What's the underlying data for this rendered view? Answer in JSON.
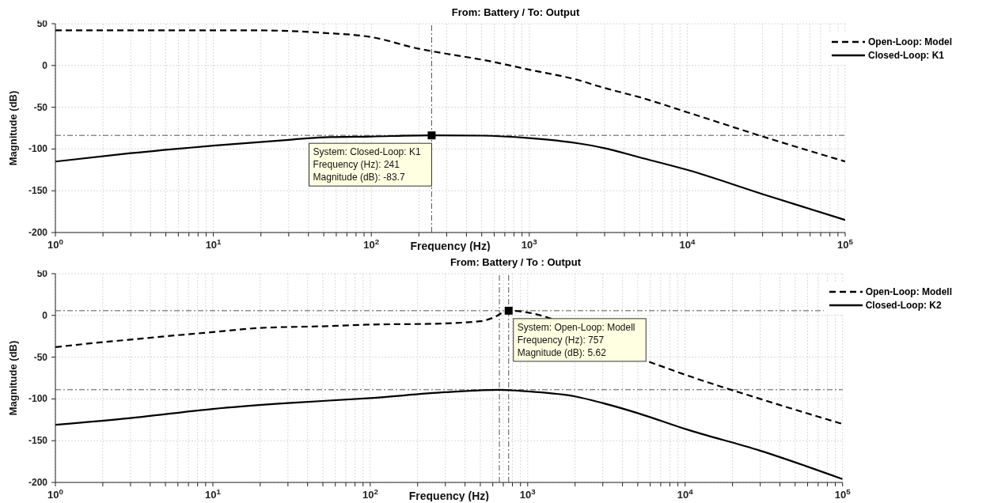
{
  "chart_data": [
    {
      "type": "line",
      "title": "From: Battery  / To: Output",
      "xlabel": "Frequency  (Hz)",
      "ylabel": "Magnitude (dB)",
      "log": "x",
      "grid": true,
      "legend": "top right",
      "marker": "none",
      "xlim": [
        1,
        100000
      ],
      "ylim": [
        -200,
        50
      ],
      "yticks": [
        -200,
        -150,
        -100,
        -50,
        0,
        50
      ],
      "xticks": [
        {
          "value": 1,
          "label": "10$^{0}$"
        },
        {
          "value": 2,
          "label": null
        },
        {
          "value": 3,
          "label": null
        },
        {
          "value": 4,
          "label": null
        },
        {
          "value": 5,
          "label": null
        },
        {
          "value": 6,
          "label": null
        },
        {
          "value": 7,
          "label": null
        },
        {
          "value": 8,
          "label": null
        },
        {
          "value": 9,
          "label": null
        },
        {
          "value": 10,
          "label": "10$^{1}$"
        },
        {
          "value": 20,
          "label": null
        },
        {
          "value": 30,
          "label": null
        },
        {
          "value": 40,
          "label": null
        },
        {
          "value": 50,
          "label": null
        },
        {
          "value": 60,
          "label": null
        },
        {
          "value": 70,
          "label": null
        },
        {
          "value": 80,
          "label": null
        },
        {
          "value": 90,
          "label": null
        },
        {
          "value": 100,
          "label": "10$^{2}$"
        },
        {
          "value": 200,
          "label": null
        },
        {
          "value": 300,
          "label": null
        },
        {
          "value": 400,
          "label": null
        },
        {
          "value": 500,
          "label": null
        },
        {
          "value": 600,
          "label": null
        },
        {
          "value": 700,
          "label": null
        },
        {
          "value": 800,
          "label": null
        },
        {
          "value": 900,
          "label": null
        },
        {
          "value": 1000,
          "label": "10$^{3}$"
        },
        {
          "value": 2000,
          "label": null
        },
        {
          "value": 3000,
          "label": null
        },
        {
          "value": 4000,
          "label": null
        },
        {
          "value": 5000,
          "label": null
        },
        {
          "value": 6000,
          "label": null
        },
        {
          "value": 7000,
          "label": null
        },
        {
          "value": 8000,
          "label": null
        },
        {
          "value": 9000,
          "label": null
        },
        {
          "value": 10000,
          "label": "10$^{4}$"
        },
        {
          "value": 20000,
          "label": null
        },
        {
          "value": 30000,
          "label": null
        },
        {
          "value": 40000,
          "label": null
        },
        {
          "value": 50000,
          "label": null
        },
        {
          "value": 60000,
          "label": null
        },
        {
          "value": 70000,
          "label": null
        },
        {
          "value": 80000,
          "label": null
        },
        {
          "value": 90000,
          "label": null
        },
        {
          "value": 100000,
          "label": "10$^{5}$"
        }
      ],
      "series": [
        {
          "name": "Open-Loop: Model",
          "color": "#000000",
          "line_style": "dashed",
          "x": [
            1,
            5,
            10,
            20,
            50,
            100,
            200,
            300,
            500,
            1000,
            2000,
            3000,
            5000,
            10000,
            30000,
            100000
          ],
          "values": [
            42,
            42,
            42,
            42,
            39,
            34,
            20,
            14,
            7,
            -5,
            -17,
            -27,
            -38,
            -56,
            -85,
            -115
          ]
        },
        {
          "name": "Closed-Loop: K1",
          "color": "#000000",
          "line_style": "solid",
          "x": [
            1,
            3,
            10,
            30,
            50,
            100,
            241,
            500,
            1000,
            2000,
            3000,
            5000,
            10000,
            30000,
            100000
          ],
          "values": [
            -115,
            -105,
            -96,
            -89,
            -86,
            -85,
            -83.7,
            -84,
            -87,
            -93,
            -99,
            -110,
            -125,
            -154,
            -185
          ]
        }
      ],
      "ref_lines": [
        {
          "axis": "y",
          "value": -83.7,
          "color": "#555555",
          "line_style": "dashed"
        },
        {
          "axis": "x",
          "value": 241,
          "color": "#555555",
          "line_style": "dashed"
        }
      ],
      "annotations": [
        {
          "text": "System: Closed-Loop: K1\nFrequency (Hz): 241\nMagnitude (dB): -83.7",
          "x": 241,
          "y": -83.7
        }
      ]
    },
    {
      "type": "line",
      "title": "From: Battery / To : Output",
      "xlabel": "Frequency  (Hz)",
      "ylabel": "Magnitude (dB)",
      "log": "x",
      "grid": true,
      "legend": "top right",
      "marker": "none",
      "xlim": [
        1,
        100000
      ],
      "ylim": [
        -200,
        50
      ],
      "yticks": [
        -200,
        -150,
        -100,
        -50,
        0,
        50
      ],
      "xticks": [
        {
          "value": 1,
          "label": "10$^{0}$"
        },
        {
          "value": 2,
          "label": null
        },
        {
          "value": 3,
          "label": null
        },
        {
          "value": 4,
          "label": null
        },
        {
          "value": 5,
          "label": null
        },
        {
          "value": 6,
          "label": null
        },
        {
          "value": 7,
          "label": null
        },
        {
          "value": 8,
          "label": null
        },
        {
          "value": 9,
          "label": null
        },
        {
          "value": 10,
          "label": "10$^{1}$"
        },
        {
          "value": 20,
          "label": null
        },
        {
          "value": 30,
          "label": null
        },
        {
          "value": 40,
          "label": null
        },
        {
          "value": 50,
          "label": null
        },
        {
          "value": 60,
          "label": null
        },
        {
          "value": 70,
          "label": null
        },
        {
          "value": 80,
          "label": null
        },
        {
          "value": 90,
          "label": null
        },
        {
          "value": 100,
          "label": "10$^{2}$"
        },
        {
          "value": 200,
          "label": null
        },
        {
          "value": 300,
          "label": null
        },
        {
          "value": 400,
          "label": null
        },
        {
          "value": 500,
          "label": null
        },
        {
          "value": 600,
          "label": null
        },
        {
          "value": 700,
          "label": null
        },
        {
          "value": 800,
          "label": null
        },
        {
          "value": 900,
          "label": null
        },
        {
          "value": 1000,
          "label": "10$^{3}$"
        },
        {
          "value": 2000,
          "label": null
        },
        {
          "value": 3000,
          "label": null
        },
        {
          "value": 4000,
          "label": null
        },
        {
          "value": 5000,
          "label": null
        },
        {
          "value": 6000,
          "label": null
        },
        {
          "value": 7000,
          "label": null
        },
        {
          "value": 8000,
          "label": null
        },
        {
          "value": 9000,
          "label": null
        },
        {
          "value": 10000,
          "label": "10$^{4}$"
        },
        {
          "value": 20000,
          "label": null
        },
        {
          "value": 30000,
          "label": null
        },
        {
          "value": 40000,
          "label": null
        },
        {
          "value": 50000,
          "label": null
        },
        {
          "value": 60000,
          "label": null
        },
        {
          "value": 70000,
          "label": null
        },
        {
          "value": 80000,
          "label": null
        },
        {
          "value": 90000,
          "label": null
        },
        {
          "value": 100000,
          "label": "10$^{5}$"
        }
      ],
      "series": [
        {
          "name": "Open-Loop: Modell",
          "color": "#000000",
          "line_style": "dashed",
          "x": [
            1,
            2,
            3,
            5,
            10,
            20,
            50,
            100,
            250,
            500,
            600,
            757,
            6000,
            10000,
            30000,
            100000
          ],
          "values": [
            -38,
            -32,
            -29,
            -25,
            -20,
            -15,
            -13,
            -11,
            -10,
            -7,
            -3,
            5.62,
            -56,
            -71,
            -100,
            -130
          ]
        },
        {
          "name": "Closed-Loop: K2",
          "color": "#000000",
          "line_style": "solid",
          "x": [
            1,
            3,
            10,
            30,
            100,
            300,
            661,
            1000,
            2000,
            3000,
            5000,
            10000,
            30000,
            100000
          ],
          "values": [
            -131,
            -123,
            -112,
            -105,
            -99,
            -92,
            -89,
            -91,
            -97,
            -105,
            -117,
            -136,
            -162,
            -196
          ]
        }
      ],
      "ref_lines": [
        {
          "axis": "y",
          "value": 5.62,
          "color": "#555555",
          "line_style": "dashed"
        },
        {
          "axis": "x",
          "value": 757,
          "color": "#555555",
          "line_style": "dashed"
        },
        {
          "axis": "y",
          "value": -89,
          "color": "#555555",
          "line_style": "dashed"
        },
        {
          "axis": "x",
          "value": 661,
          "color": "#555555",
          "line_style": "dashed"
        }
      ],
      "annotations": [
        {
          "text": "System: Open-Loop: Modell\nFrequency (Hz): 757\nMagnitude (dB): 5.62",
          "x": 757,
          "y": 5.62
        }
      ]
    }
  ]
}
